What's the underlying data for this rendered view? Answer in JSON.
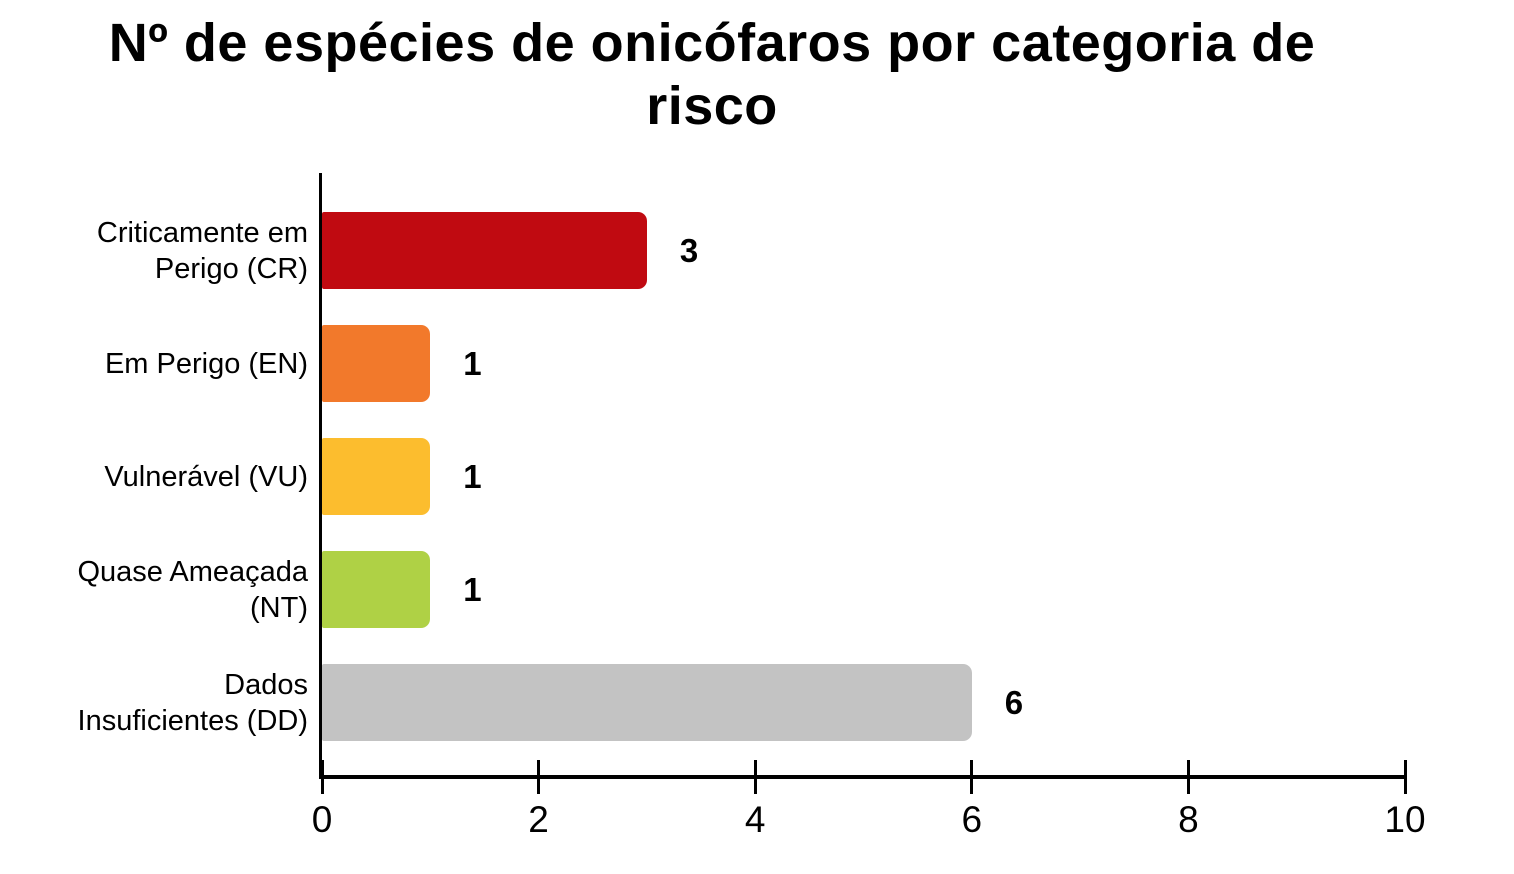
{
  "chart_data": {
    "type": "bar",
    "orientation": "horizontal",
    "title": "Nº de espécies de onicófaros por categoria de risco",
    "title_lines": [
      "Nº de espécies de onicófaros por categoria de",
      "risco"
    ],
    "categories": [
      "Criticamente em Perigo (CR)",
      "Em Perigo (EN)",
      "Vulnerável (VU)",
      "Quase Ameaçada (NT)",
      "Dados Insuficientes (DD)"
    ],
    "category_lines": [
      [
        "Criticamente em",
        "Perigo (CR)"
      ],
      [
        "Em Perigo (EN)"
      ],
      [
        "Vulnerável (VU)"
      ],
      [
        "Quase Ameaçada",
        "(NT)"
      ],
      [
        "Dados",
        "Insuficientes (DD)"
      ]
    ],
    "category_codes": [
      "CR",
      "EN",
      "VU",
      "NT",
      "DD"
    ],
    "values": [
      3,
      1,
      1,
      1,
      6
    ],
    "data_labels": [
      "3",
      "1",
      "1",
      "1",
      "6"
    ],
    "bar_colors": [
      "#c00a11",
      "#f2792b",
      "#fcbd2e",
      "#afd145",
      "#c3c3c3"
    ],
    "x_ticks": [
      "0",
      "2",
      "4",
      "6",
      "8",
      "10"
    ],
    "x_tick_values": [
      0,
      2,
      4,
      6,
      8,
      10
    ],
    "xlim": [
      0,
      10
    ],
    "xlabel": "",
    "ylabel": "",
    "legend": "none",
    "grid": "off",
    "axis_color": "#000000",
    "text_color": "#000000",
    "background_color": "#ffffff"
  }
}
